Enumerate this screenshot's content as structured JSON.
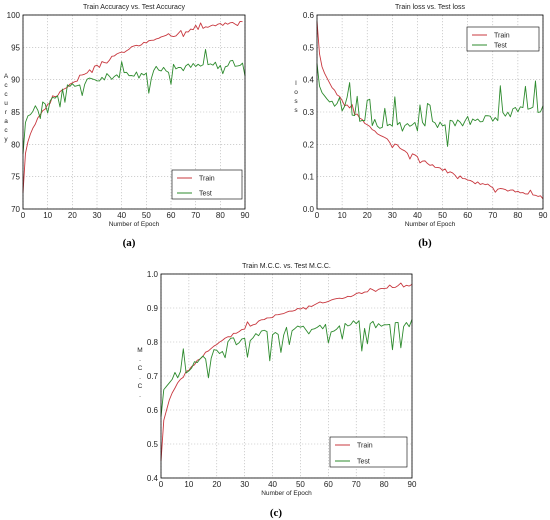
{
  "chart_data": [
    {
      "type": "line",
      "title": "Train Accuracy vs. Test  Accuracy",
      "xlabel": "Number of Epoch",
      "ylabel": "Accuracy",
      "caption": "(a)",
      "xlim": [
        0,
        90
      ],
      "ylim": [
        70,
        100
      ],
      "xticks": [
        "0",
        "10",
        "20",
        "30",
        "40",
        "50",
        "60",
        "70",
        "80",
        "90"
      ],
      "yticks": [
        "70",
        "75",
        "80",
        "85",
        "90",
        "95",
        "100"
      ],
      "grid": true,
      "legend_position": "bottom-right",
      "colors": {
        "Train": "#c8383f",
        "Test": "#2e8b2e"
      },
      "series": [
        {
          "name": "Train",
          "values": [
            72.5,
            78.6,
            80.4,
            81.6,
            82.5,
            83.2,
            83.9,
            84.5,
            85,
            85.5,
            86,
            86.4,
            86.8,
            87.2,
            87.6,
            88,
            88.3,
            88.7,
            89,
            89.3,
            89.6,
            89.9,
            90.2,
            90.5,
            90.7,
            91,
            91.2,
            91.5,
            91.7,
            92,
            92.2,
            92.4,
            92.6,
            92.8,
            93,
            93.2,
            93.4,
            93.6,
            93.8,
            94,
            94.2,
            94.4,
            94.5,
            94.7,
            94.9,
            95,
            95.2,
            95.3,
            95.5,
            95.6,
            95.8,
            95.9,
            96,
            96.2,
            96.3,
            96.4,
            96.5,
            96.6,
            96.8,
            96.9,
            97,
            97.1,
            97.2,
            97.3,
            97.4,
            97.4,
            97.5,
            97.6,
            97.7,
            97.8,
            97.9,
            97.9,
            98,
            98.1,
            98.1,
            98.2,
            98.3,
            98.3,
            98.4,
            98.5,
            98.5,
            98.6,
            98.6,
            98.7,
            98.7,
            98.8,
            98.8,
            98.9,
            98.9,
            99
          ]
        },
        {
          "name": "Test",
          "values": [
            78.5,
            83.4,
            84.4,
            84.6,
            85.1,
            85.5,
            85.8,
            86.1,
            86.4,
            86.7,
            87,
            87.2,
            87.5,
            87.7,
            87.9,
            88.1,
            88.3,
            88.4,
            88.6,
            88.8,
            88.9,
            89.1,
            89.2,
            89.3,
            89.4,
            89.6,
            89.7,
            89.8,
            89.9,
            90,
            90.1,
            90.2,
            90.2,
            90.3,
            90.4,
            90.5,
            90.6,
            90.6,
            90.7,
            90.8,
            90.8,
            90.9,
            91,
            91,
            91.1,
            91.1,
            91.2,
            91.2,
            91.3,
            91.3,
            91.4,
            91.4,
            91.5,
            91.5,
            91.5,
            91.6,
            91.6,
            91.7,
            91.7,
            91.7,
            91.8,
            91.8,
            91.8,
            91.9,
            91.9,
            91.9,
            92,
            92,
            92,
            92.1,
            92.1,
            92.1,
            92.1,
            92.2,
            92.2,
            92.2,
            92.2,
            92.3,
            92.3,
            92.3,
            92.3,
            92.4,
            92.4,
            92.4,
            92.4,
            92.4,
            92.5,
            92.5,
            92.5,
            92.5,
            92.5
          ]
        }
      ]
    },
    {
      "type": "line",
      "title": "Train loss vs. Test loss",
      "xlabel": "Number of Epoch",
      "ylabel": "loss",
      "caption": "(b)",
      "xlim": [
        0,
        90
      ],
      "ylim": [
        0.0,
        0.6
      ],
      "xticks": [
        "0",
        "10",
        "20",
        "30",
        "40",
        "50",
        "60",
        "70",
        "80",
        "90"
      ],
      "yticks": [
        "0.0",
        "0.1",
        "0.2",
        "0.3",
        "0.4",
        "0.5",
        "0.6"
      ],
      "grid": true,
      "legend_position": "top-right",
      "colors": {
        "Train": "#c8383f",
        "Test": "#2e8b2e"
      },
      "series": [
        {
          "name": "Train",
          "values": [
            0.58,
            0.48,
            0.44,
            0.42,
            0.405,
            0.39,
            0.379,
            0.368,
            0.357,
            0.347,
            0.338,
            0.329,
            0.32,
            0.312,
            0.304,
            0.296,
            0.289,
            0.282,
            0.275,
            0.268,
            0.261,
            0.255,
            0.249,
            0.243,
            0.237,
            0.231,
            0.225,
            0.22,
            0.214,
            0.209,
            0.204,
            0.199,
            0.194,
            0.189,
            0.184,
            0.18,
            0.175,
            0.171,
            0.167,
            0.163,
            0.159,
            0.155,
            0.151,
            0.147,
            0.143,
            0.14,
            0.136,
            0.133,
            0.129,
            0.126,
            0.123,
            0.12,
            0.116,
            0.113,
            0.11,
            0.107,
            0.105,
            0.102,
            0.099,
            0.096,
            0.094,
            0.091,
            0.089,
            0.086,
            0.084,
            0.081,
            0.079,
            0.077,
            0.075,
            0.073,
            0.07,
            0.068,
            0.066,
            0.064,
            0.062,
            0.06,
            0.059,
            0.057,
            0.055,
            0.053,
            0.051,
            0.05,
            0.048,
            0.046,
            0.045,
            0.043,
            0.042,
            0.04,
            0.039,
            0.037,
            0.036
          ]
        },
        {
          "name": "Test",
          "values": [
            0.45,
            0.38,
            0.36,
            0.35,
            0.34,
            0.335,
            0.33,
            0.325,
            0.32,
            0.315,
            0.31,
            0.306,
            0.302,
            0.298,
            0.294,
            0.29,
            0.287,
            0.284,
            0.281,
            0.278,
            0.275,
            0.272,
            0.27,
            0.268,
            0.266,
            0.264,
            0.262,
            0.26,
            0.259,
            0.258,
            0.257,
            0.256,
            0.255,
            0.254,
            0.254,
            0.253,
            0.253,
            0.253,
            0.253,
            0.253,
            0.253,
            0.254,
            0.254,
            0.255,
            0.255,
            0.256,
            0.257,
            0.258,
            0.259,
            0.26,
            0.261,
            0.262,
            0.263,
            0.264,
            0.265,
            0.266,
            0.267,
            0.268,
            0.269,
            0.27,
            0.272,
            0.273,
            0.274,
            0.276,
            0.277,
            0.278,
            0.28,
            0.281,
            0.283,
            0.284,
            0.285,
            0.287,
            0.288,
            0.29,
            0.291,
            0.293,
            0.294,
            0.296,
            0.297,
            0.299,
            0.3,
            0.302,
            0.303,
            0.305,
            0.306,
            0.308,
            0.309,
            0.311,
            0.312,
            0.314,
            0.315
          ]
        }
      ]
    },
    {
      "type": "line",
      "title": "Train M.C.C.  vs. Test M.C.C.",
      "xlabel": "Number of Epoch",
      "ylabel": "M.C.C.",
      "caption": "(c)",
      "xlim": [
        0,
        90
      ],
      "ylim": [
        0.4,
        1.0
      ],
      "xticks": [
        "0",
        "10",
        "20",
        "30",
        "40",
        "50",
        "60",
        "70",
        "80",
        "90"
      ],
      "yticks": [
        "0.4",
        "0.5",
        "0.6",
        "0.7",
        "0.8",
        "0.9",
        "1.0"
      ],
      "grid": true,
      "legend_position": "bottom-right",
      "colors": {
        "Train": "#c8383f",
        "Test": "#2e8b2e"
      },
      "series": [
        {
          "name": "Train",
          "values": [
            0.45,
            0.57,
            0.6,
            0.63,
            0.65,
            0.665,
            0.68,
            0.69,
            0.7,
            0.71,
            0.72,
            0.728,
            0.736,
            0.744,
            0.752,
            0.76,
            0.767,
            0.774,
            0.78,
            0.786,
            0.792,
            0.798,
            0.803,
            0.808,
            0.813,
            0.818,
            0.823,
            0.828,
            0.832,
            0.836,
            0.84,
            0.844,
            0.848,
            0.852,
            0.856,
            0.86,
            0.863,
            0.866,
            0.869,
            0.872,
            0.875,
            0.878,
            0.881,
            0.884,
            0.887,
            0.89,
            0.892,
            0.894,
            0.896,
            0.898,
            0.9,
            0.902,
            0.904,
            0.906,
            0.908,
            0.91,
            0.912,
            0.914,
            0.916,
            0.918,
            0.92,
            0.922,
            0.924,
            0.926,
            0.928,
            0.93,
            0.932,
            0.934,
            0.936,
            0.938,
            0.94,
            0.942,
            0.944,
            0.945,
            0.946,
            0.948,
            0.95,
            0.951,
            0.952,
            0.954,
            0.955,
            0.956,
            0.958,
            0.959,
            0.96,
            0.962,
            0.963,
            0.964,
            0.965,
            0.966,
            0.968
          ]
        },
        {
          "name": "Test",
          "values": [
            0.58,
            0.66,
            0.67,
            0.68,
            0.69,
            0.7,
            0.705,
            0.71,
            0.715,
            0.72,
            0.725,
            0.73,
            0.735,
            0.74,
            0.745,
            0.75,
            0.755,
            0.76,
            0.765,
            0.77,
            0.775,
            0.78,
            0.784,
            0.788,
            0.792,
            0.796,
            0.8,
            0.803,
            0.806,
            0.809,
            0.812,
            0.814,
            0.816,
            0.818,
            0.82,
            0.821,
            0.822,
            0.823,
            0.824,
            0.825,
            0.826,
            0.827,
            0.828,
            0.829,
            0.83,
            0.831,
            0.832,
            0.833,
            0.834,
            0.835,
            0.836,
            0.837,
            0.838,
            0.839,
            0.84,
            0.84,
            0.841,
            0.842,
            0.842,
            0.843,
            0.844,
            0.844,
            0.845,
            0.846,
            0.846,
            0.847,
            0.847,
            0.848,
            0.848,
            0.849,
            0.849,
            0.85,
            0.85,
            0.851,
            0.851,
            0.852,
            0.852,
            0.852,
            0.853,
            0.853,
            0.853,
            0.854,
            0.854,
            0.854,
            0.855,
            0.855,
            0.855,
            0.856,
            0.856,
            0.856,
            0.857
          ]
        }
      ]
    }
  ]
}
